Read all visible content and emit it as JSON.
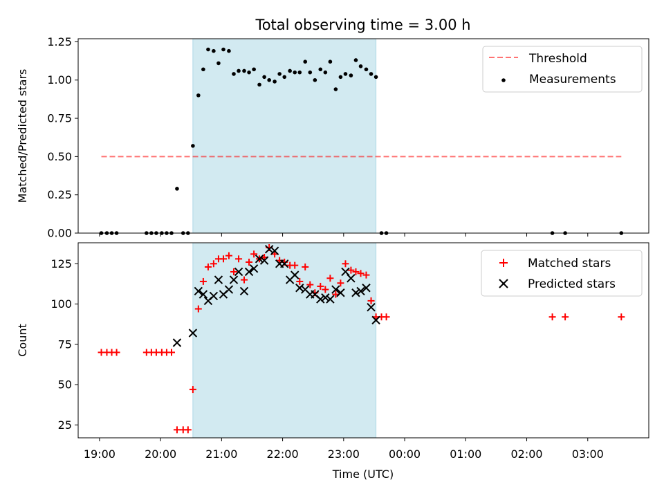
{
  "title": "Total observing time = 3.00 h",
  "colors": {
    "highlight": "#add8e6",
    "threshold": "#ff0000",
    "measurement": "#000000",
    "matched": "#ff0000",
    "predicted": "#000000"
  },
  "chart_data": [
    {
      "type": "scatter",
      "ylabel": "Matched/Predicted stars",
      "xlim_hours": [
        18.65,
        28.0
      ],
      "ylim": [
        0,
        1.27
      ],
      "yticks": [
        0,
        0.25,
        0.5,
        0.75,
        1.0,
        1.25
      ],
      "ytick_labels": [
        "0.00",
        "0.25",
        "0.50",
        "0.75",
        "1.00",
        "1.25"
      ],
      "shaded_interval_hours": [
        20.53,
        23.53
      ],
      "threshold": {
        "name": "Threshold",
        "value": 0.5,
        "x_hours": [
          19.03,
          27.55
        ],
        "style": "dashed"
      },
      "legend": {
        "placement": "top-right",
        "entries": [
          "Threshold",
          "Measurements"
        ]
      },
      "series": [
        {
          "name": "Measurements",
          "x_hours": [
            19.03,
            19.12,
            19.2,
            19.28,
            19.77,
            19.85,
            19.93,
            20.02,
            20.1,
            20.18,
            20.27,
            20.37,
            20.45,
            20.53,
            20.62,
            20.7,
            20.78,
            20.87,
            20.95,
            21.03,
            21.12,
            21.2,
            21.28,
            21.37,
            21.45,
            21.53,
            21.62,
            21.7,
            21.78,
            21.87,
            21.95,
            22.03,
            22.12,
            22.2,
            22.28,
            22.37,
            22.45,
            22.53,
            22.62,
            22.7,
            22.78,
            22.87,
            22.95,
            23.03,
            23.12,
            23.2,
            23.28,
            23.37,
            23.45,
            23.53,
            23.62,
            23.7,
            26.42,
            26.63,
            27.55
          ],
          "values": [
            0,
            0,
            0,
            0,
            0,
            0,
            0,
            0,
            0,
            0,
            0.29,
            0,
            0,
            0.57,
            0.9,
            1.07,
            1.2,
            1.19,
            1.11,
            1.2,
            1.19,
            1.04,
            1.06,
            1.06,
            1.05,
            1.07,
            0.97,
            1.02,
            1.0,
            0.99,
            1.04,
            1.02,
            1.06,
            1.05,
            1.05,
            1.12,
            1.05,
            1.0,
            1.07,
            1.05,
            1.12,
            0.94,
            1.02,
            1.04,
            1.03,
            1.13,
            1.09,
            1.07,
            1.04,
            1.02,
            0,
            0,
            0,
            0,
            0
          ]
        }
      ]
    },
    {
      "type": "scatter",
      "xlabel": "Time (UTC)",
      "ylabel": "Count",
      "xlim_hours": [
        18.65,
        28.0
      ],
      "ylim": [
        17,
        138
      ],
      "yticks": [
        25,
        50,
        75,
        100,
        125
      ],
      "ytick_labels": [
        "25",
        "50",
        "75",
        "100",
        "125"
      ],
      "xticks_hours": [
        19,
        20,
        21,
        22,
        23,
        24,
        25,
        26,
        27
      ],
      "xtick_labels": [
        "19:00",
        "20:00",
        "21:00",
        "22:00",
        "23:00",
        "00:00",
        "01:00",
        "02:00",
        "03:00"
      ],
      "shaded_interval_hours": [
        20.53,
        23.53
      ],
      "legend": {
        "placement": "top-right",
        "entries": [
          "Matched stars",
          "Predicted stars"
        ]
      },
      "series": [
        {
          "name": "Matched stars",
          "marker": "plus",
          "x_hours": [
            19.03,
            19.12,
            19.2,
            19.28,
            19.77,
            19.85,
            19.93,
            20.02,
            20.1,
            20.18,
            20.27,
            20.37,
            20.45,
            20.53,
            20.62,
            20.7,
            20.78,
            20.87,
            20.95,
            21.03,
            21.12,
            21.2,
            21.28,
            21.37,
            21.45,
            21.53,
            21.62,
            21.7,
            21.78,
            21.87,
            21.95,
            22.03,
            22.12,
            22.2,
            22.28,
            22.37,
            22.45,
            22.53,
            22.62,
            22.7,
            22.78,
            22.87,
            22.95,
            23.03,
            23.12,
            23.2,
            23.28,
            23.37,
            23.45,
            23.53,
            23.62,
            23.7,
            26.42,
            26.63,
            27.55
          ],
          "values": [
            70,
            70,
            70,
            70,
            70,
            70,
            70,
            70,
            70,
            70,
            22,
            22,
            22,
            47,
            97,
            114,
            123,
            125,
            128,
            128,
            130,
            120,
            128,
            115,
            126,
            131,
            128,
            129,
            135,
            131,
            127,
            126,
            124,
            124,
            114,
            123,
            112,
            107,
            111,
            109,
            116,
            106,
            113,
            125,
            121,
            120,
            119,
            118,
            102,
            92,
            92,
            92,
            92,
            92,
            92
          ]
        },
        {
          "name": "Predicted stars",
          "marker": "x",
          "x_hours": [
            20.27,
            20.53,
            20.62,
            20.7,
            20.78,
            20.87,
            20.95,
            21.03,
            21.12,
            21.2,
            21.28,
            21.37,
            21.45,
            21.53,
            21.62,
            21.7,
            21.78,
            21.87,
            21.95,
            22.03,
            22.12,
            22.2,
            22.28,
            22.37,
            22.45,
            22.53,
            22.62,
            22.7,
            22.78,
            22.87,
            22.95,
            23.03,
            23.12,
            23.2,
            23.28,
            23.37,
            23.45,
            23.53
          ],
          "values": [
            76,
            82,
            108,
            106,
            102,
            105,
            115,
            106,
            109,
            115,
            120,
            108,
            120,
            122,
            128,
            127,
            134,
            133,
            125,
            125,
            115,
            118,
            110,
            109,
            106,
            106,
            103,
            104,
            103,
            109,
            107,
            120,
            116,
            107,
            108,
            110,
            98,
            90
          ]
        }
      ]
    }
  ]
}
